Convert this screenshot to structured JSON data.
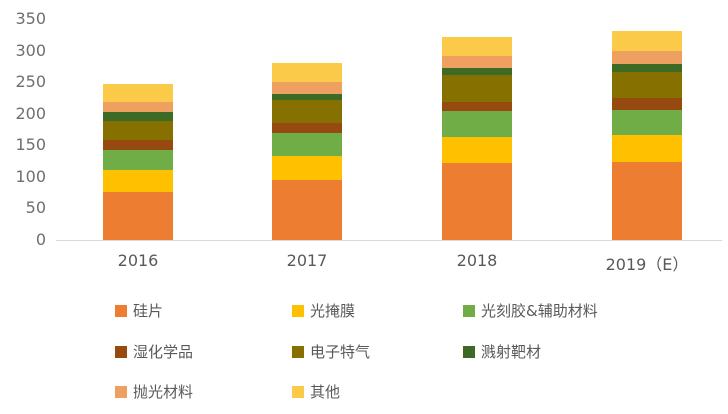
{
  "chart_data": {
    "type": "bar",
    "stacked": true,
    "title": "",
    "categories": [
      "2016",
      "2017",
      "2018",
      "2019（E）"
    ],
    "series": [
      {
        "name": "硅片",
        "color": "#ED7D31",
        "values": [
          76,
          95,
          122,
          123
        ]
      },
      {
        "name": "光掩膜",
        "color": "#FFC000",
        "values": [
          35,
          38,
          41,
          43
        ]
      },
      {
        "name": "光刻胶&辅助材料",
        "color": "#70AD47",
        "values": [
          31,
          37,
          41,
          40
        ]
      },
      {
        "name": "湿化学品",
        "color": "#964A10",
        "values": [
          16,
          16,
          15,
          19
        ]
      },
      {
        "name": "电子特气",
        "color": "#857000",
        "values": [
          31,
          36,
          43,
          41
        ]
      },
      {
        "name": "溅射靶材",
        "color": "#3D6B25",
        "values": [
          13,
          10,
          10,
          12
        ]
      },
      {
        "name": "抛光材料",
        "color": "#EDA05F",
        "values": [
          17,
          18,
          20,
          21
        ]
      },
      {
        "name": "其他",
        "color": "#FACA48",
        "values": [
          28,
          30,
          30,
          32
        ]
      }
    ],
    "ylim": [
      0,
      350
    ],
    "yticks": [
      0,
      50,
      100,
      150,
      200,
      250,
      300,
      350
    ],
    "grid": false,
    "legend_position": "bottom",
    "legend_columns": 3,
    "colors": {
      "axis_line": "#D9D9D9",
      "tick_label": "#6F6F6F",
      "category_label": "#595959",
      "legend_text": "#595959",
      "background": "#FFFFFF"
    }
  }
}
